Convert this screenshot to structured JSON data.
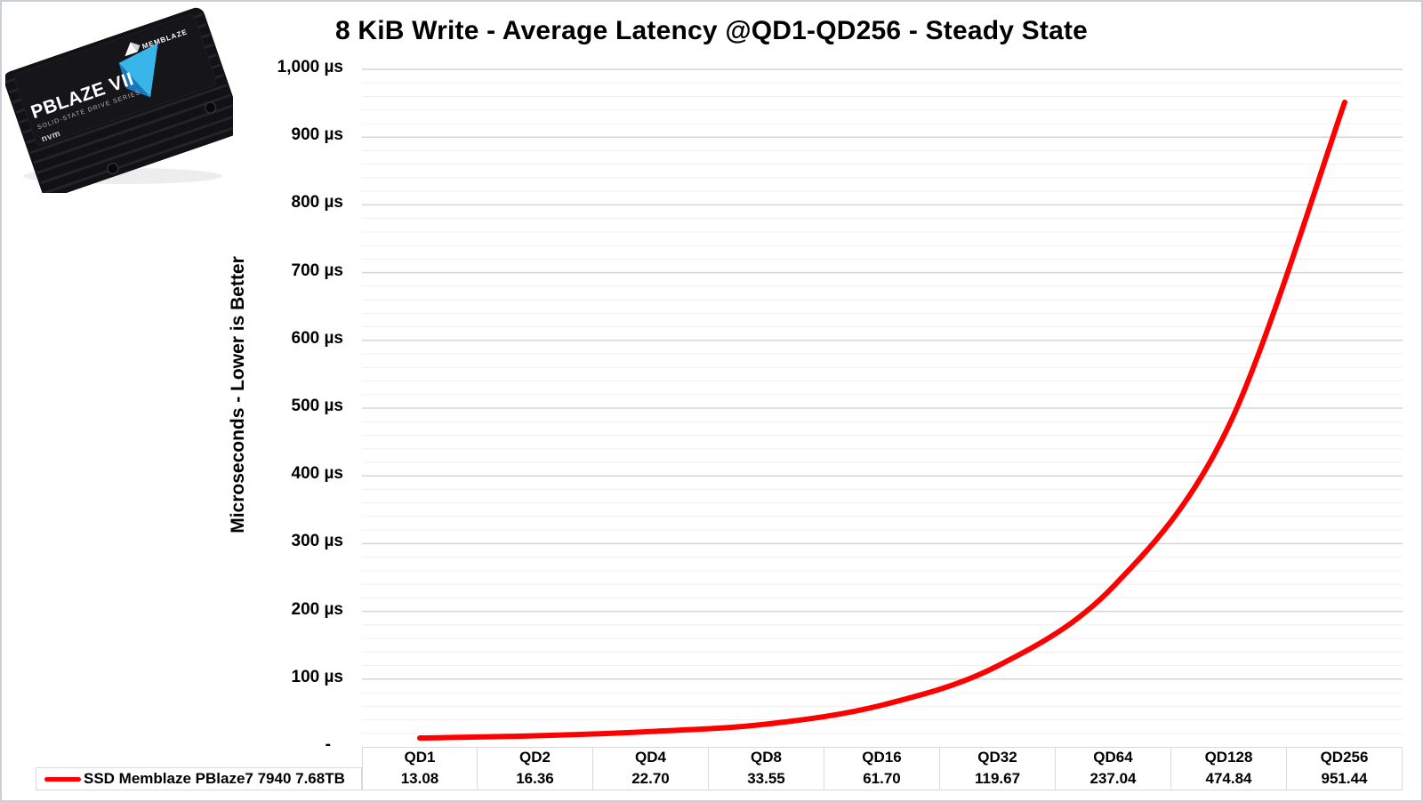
{
  "frame": {
    "border_color": "#C9CFD6",
    "background": "#FFFFFF"
  },
  "title": "8 KiB Write - Average Latency @QD1-QD256 - Steady State",
  "product": {
    "brand": "MEMBLAZE",
    "model": "PBLAZE VII",
    "series": "SOLID-STATE DRIVE SERIES",
    "badge": "nvm"
  },
  "chart_data": {
    "type": "line",
    "title": "8 KiB Write - Average Latency @QD1-QD256 - Steady State",
    "categories": [
      "QD1",
      "QD2",
      "QD4",
      "QD8",
      "QD16",
      "QD32",
      "QD64",
      "QD128",
      "QD256"
    ],
    "series": [
      {
        "name": "SSD Memblaze PBlaze7 7940 7.68TB",
        "values": [
          13.08,
          16.36,
          22.7,
          33.55,
          61.7,
          119.67,
          237.04,
          474.84,
          951.44
        ],
        "display_values": [
          "13.08",
          "16.36",
          "22.70",
          "33.55",
          "61.70",
          "119.67",
          "237.04",
          "474.84",
          "951.44"
        ],
        "color": "#FF0000",
        "smooth": true,
        "stroke_width": 6
      }
    ],
    "xlabel": "",
    "ylabel": "Microseconds  -  Lower is Better",
    "ylim": [
      0,
      1000
    ],
    "ytick_step": 100,
    "ytick_labels": [
      "-",
      "100 µs",
      "200 µs",
      "300 µs",
      "400 µs",
      "500 µs",
      "600 µs",
      "700 µs",
      "800 µs",
      "900 µs",
      "1,000 µs"
    ],
    "grid": {
      "minor_step": 20,
      "major_color": "#D5D5D5",
      "minor_color": "#EFEFEF"
    },
    "legend_position": "bottom-table"
  },
  "table": {
    "border_color": "#D9D9D9"
  },
  "product_colors": {
    "body_dark": "#121215",
    "panel": "#16161a",
    "fin_light": "#232329",
    "blue_light": "#38B5E9",
    "blue_dark": "#1B77BB"
  }
}
